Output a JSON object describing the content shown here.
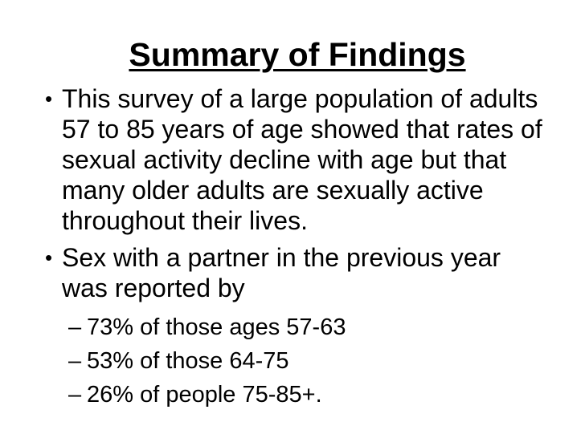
{
  "slide": {
    "background_color": "#ffffff",
    "text_color": "#000000",
    "title": {
      "text": "Summary of Findings"
    },
    "bullets": [
      {
        "marker": "•",
        "lines": [
          "This survey of a large population of adults",
          "57 to 85 years of age showed that rates of",
          "sexual activity decline with age but that",
          "many older adults are sexually active",
          "throughout their lives."
        ]
      },
      {
        "marker": "•",
        "lines": [
          "Sex with a partner in the previous year",
          "was reported by"
        ]
      }
    ],
    "sub_bullets": [
      {
        "marker": "–",
        "text": "73% of those ages 57-63"
      },
      {
        "marker": "–",
        "text": "53% of those 64-75"
      },
      {
        "marker": "–",
        "text": "26% of people 75-85+."
      }
    ]
  }
}
